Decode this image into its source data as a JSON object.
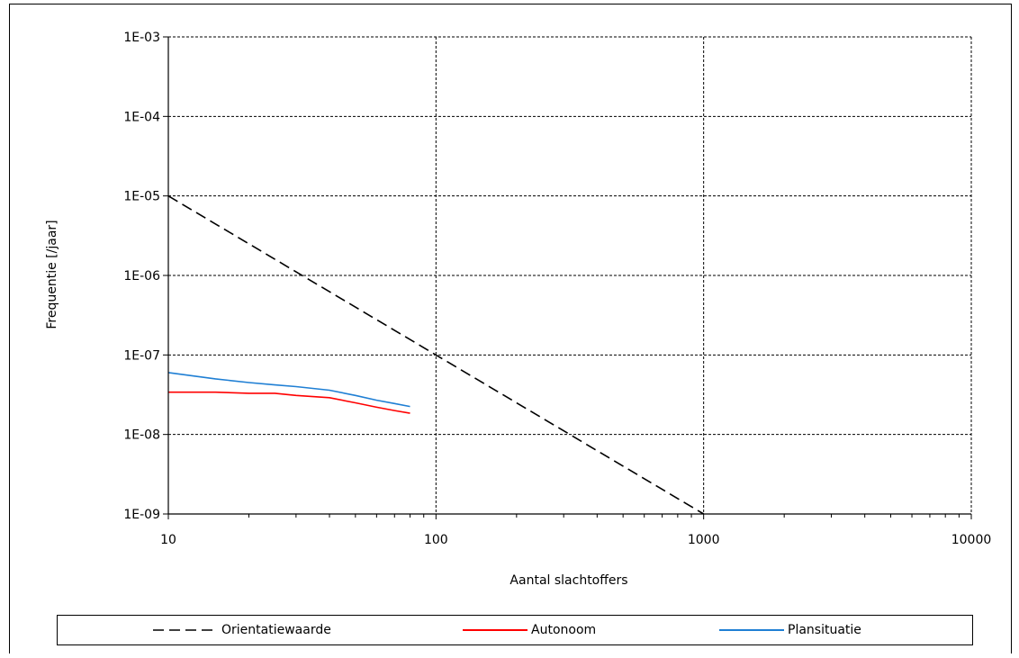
{
  "chart_data": {
    "type": "line",
    "xlabel": "Aantal slachtoffers",
    "ylabel": "Frequentie [/jaar]",
    "x_scale": "log",
    "y_scale": "log",
    "xlim": [
      10,
      10000
    ],
    "ylim": [
      1e-09,
      0.001
    ],
    "x_ticks": [
      10,
      100,
      1000,
      10000
    ],
    "x_tick_labels": [
      "10",
      "100",
      "1000",
      "10000"
    ],
    "y_ticks": [
      1e-09,
      1e-08,
      1e-07,
      1e-06,
      1e-05,
      0.0001,
      0.001
    ],
    "y_tick_labels": [
      "1E-09",
      "1E-08",
      "1E-07",
      "1E-06",
      "1E-05",
      "1E-04",
      "1E-03"
    ],
    "grid": true,
    "legend_position": "bottom",
    "series": [
      {
        "name": "Orientatiewaarde",
        "color": "#000000",
        "dash": "dashed",
        "x": [
          10,
          1000
        ],
        "y": [
          1e-05,
          1e-09
        ]
      },
      {
        "name": "Autonoom",
        "color": "#ff0000",
        "dash": "solid",
        "x": [
          10,
          15,
          20,
          25,
          30,
          40,
          50,
          60,
          70,
          80
        ],
        "y": [
          3.4e-08,
          3.4e-08,
          3.3e-08,
          3.3e-08,
          3.1e-08,
          2.9e-08,
          2.5e-08,
          2.2e-08,
          2e-08,
          1.85e-08
        ]
      },
      {
        "name": "Plansituatie",
        "color": "#1f7fd4",
        "dash": "solid",
        "x": [
          10,
          15,
          20,
          25,
          30,
          40,
          50,
          60,
          70,
          80
        ],
        "y": [
          6e-08,
          5e-08,
          4.5e-08,
          4.2e-08,
          4e-08,
          3.6e-08,
          3.1e-08,
          2.7e-08,
          2.45e-08,
          2.25e-08
        ]
      }
    ]
  }
}
